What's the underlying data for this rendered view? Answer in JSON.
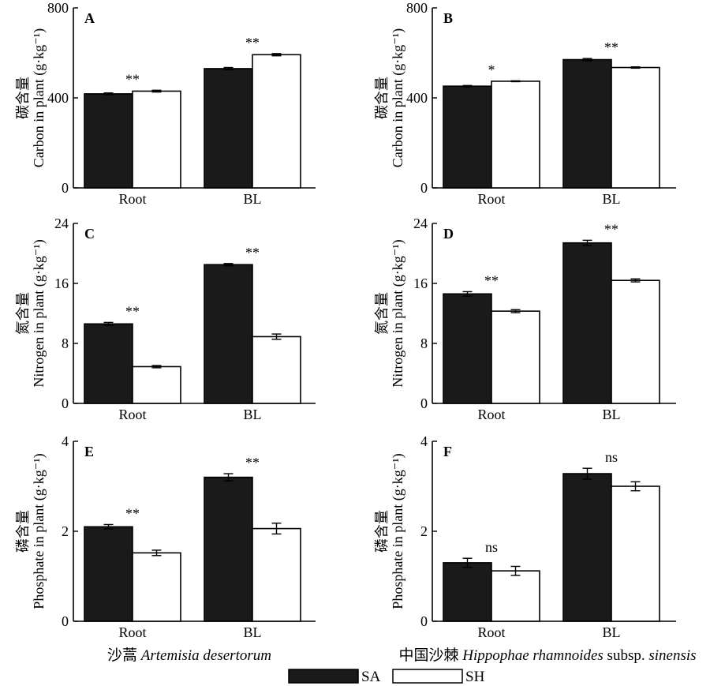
{
  "chart_data": [
    {
      "panel": "A",
      "type": "bar",
      "categories": [
        "Root",
        "BL"
      ],
      "ylabel_cn": "碳含量",
      "ylabel": "Carbon in plant (g·kg⁻¹)",
      "ylim": [
        0,
        800
      ],
      "yticks": [
        "0",
        "400",
        "800"
      ],
      "series": [
        {
          "name": "SA",
          "values": [
            418,
            530
          ],
          "errors": [
            4,
            5
          ]
        },
        {
          "name": "SH",
          "values": [
            430,
            592
          ],
          "errors": [
            4,
            5
          ]
        }
      ],
      "significance": [
        "**",
        "**"
      ]
    },
    {
      "panel": "B",
      "type": "bar",
      "categories": [
        "Root",
        "BL"
      ],
      "ylabel_cn": "碳含量",
      "ylabel": "Carbon in plant (g·kg⁻¹)",
      "ylim": [
        0,
        800
      ],
      "yticks": [
        "0",
        "400",
        "800"
      ],
      "series": [
        {
          "name": "SA",
          "values": [
            452,
            570
          ],
          "errors": [
            3,
            5
          ]
        },
        {
          "name": "SH",
          "values": [
            474,
            535
          ],
          "errors": [
            2,
            3
          ]
        }
      ],
      "significance": [
        "*",
        "**"
      ]
    },
    {
      "panel": "C",
      "type": "bar",
      "categories": [
        "Root",
        "BL"
      ],
      "ylabel_cn": "氮含量",
      "ylabel": "Nitrogen in plant (g·kg⁻¹)",
      "ylim": [
        0,
        24
      ],
      "yticks": [
        "0",
        "8",
        "16",
        "24"
      ],
      "series": [
        {
          "name": "SA",
          "values": [
            10.6,
            18.5
          ],
          "errors": [
            0.2,
            0.15
          ]
        },
        {
          "name": "SH",
          "values": [
            4.9,
            8.9
          ],
          "errors": [
            0.15,
            0.35
          ]
        }
      ],
      "significance": [
        "**",
        "**"
      ]
    },
    {
      "panel": "D",
      "type": "bar",
      "categories": [
        "Root",
        "BL"
      ],
      "ylabel_cn": "氮含量",
      "ylabel": "Nitrogen in plant (g·kg⁻¹)",
      "ylim": [
        0,
        24
      ],
      "yticks": [
        "0",
        "8",
        "16",
        "24"
      ],
      "series": [
        {
          "name": "SA",
          "values": [
            14.6,
            21.4
          ],
          "errors": [
            0.3,
            0.35
          ]
        },
        {
          "name": "SH",
          "values": [
            12.3,
            16.4
          ],
          "errors": [
            0.2,
            0.2
          ]
        }
      ],
      "significance": [
        "**",
        "**"
      ]
    },
    {
      "panel": "E",
      "type": "bar",
      "categories": [
        "Root",
        "BL"
      ],
      "ylabel_cn": "磷含量",
      "ylabel": "Phosphate in plant (g·kg⁻¹)",
      "ylim": [
        0,
        4
      ],
      "yticks": [
        "0",
        "2",
        "4"
      ],
      "series": [
        {
          "name": "SA",
          "values": [
            2.1,
            3.2
          ],
          "errors": [
            0.05,
            0.08
          ]
        },
        {
          "name": "SH",
          "values": [
            1.52,
            2.06
          ],
          "errors": [
            0.06,
            0.12
          ]
        }
      ],
      "significance": [
        "**",
        "**"
      ]
    },
    {
      "panel": "F",
      "type": "bar",
      "categories": [
        "Root",
        "BL"
      ],
      "ylabel_cn": "磷含量",
      "ylabel": "Phosphate in plant (g·kg⁻¹)",
      "ylim": [
        0,
        4
      ],
      "yticks": [
        "0",
        "2",
        "4"
      ],
      "series": [
        {
          "name": "SA",
          "values": [
            1.3,
            3.28
          ],
          "errors": [
            0.1,
            0.12
          ]
        },
        {
          "name": "SH",
          "values": [
            1.12,
            3.0
          ],
          "errors": [
            0.1,
            0.1
          ]
        }
      ],
      "significance": [
        "ns",
        "ns"
      ]
    }
  ],
  "column_labels": [
    {
      "cn": "沙蒿",
      "latin": "Artemisia desertorum",
      "suffix": "",
      "suffix_italic": ""
    },
    {
      "cn": "中国沙棘",
      "latin": "Hippophae rhamnoides",
      "suffix": "subsp.",
      "suffix_italic": "sinensis"
    }
  ],
  "legend": [
    {
      "name": "SA",
      "color": "#1a1a1a"
    },
    {
      "name": "SH",
      "color": "#ffffff"
    }
  ],
  "colors": {
    "SA": "#1a1a1a",
    "SH": "#ffffff",
    "axis": "#000000"
  }
}
